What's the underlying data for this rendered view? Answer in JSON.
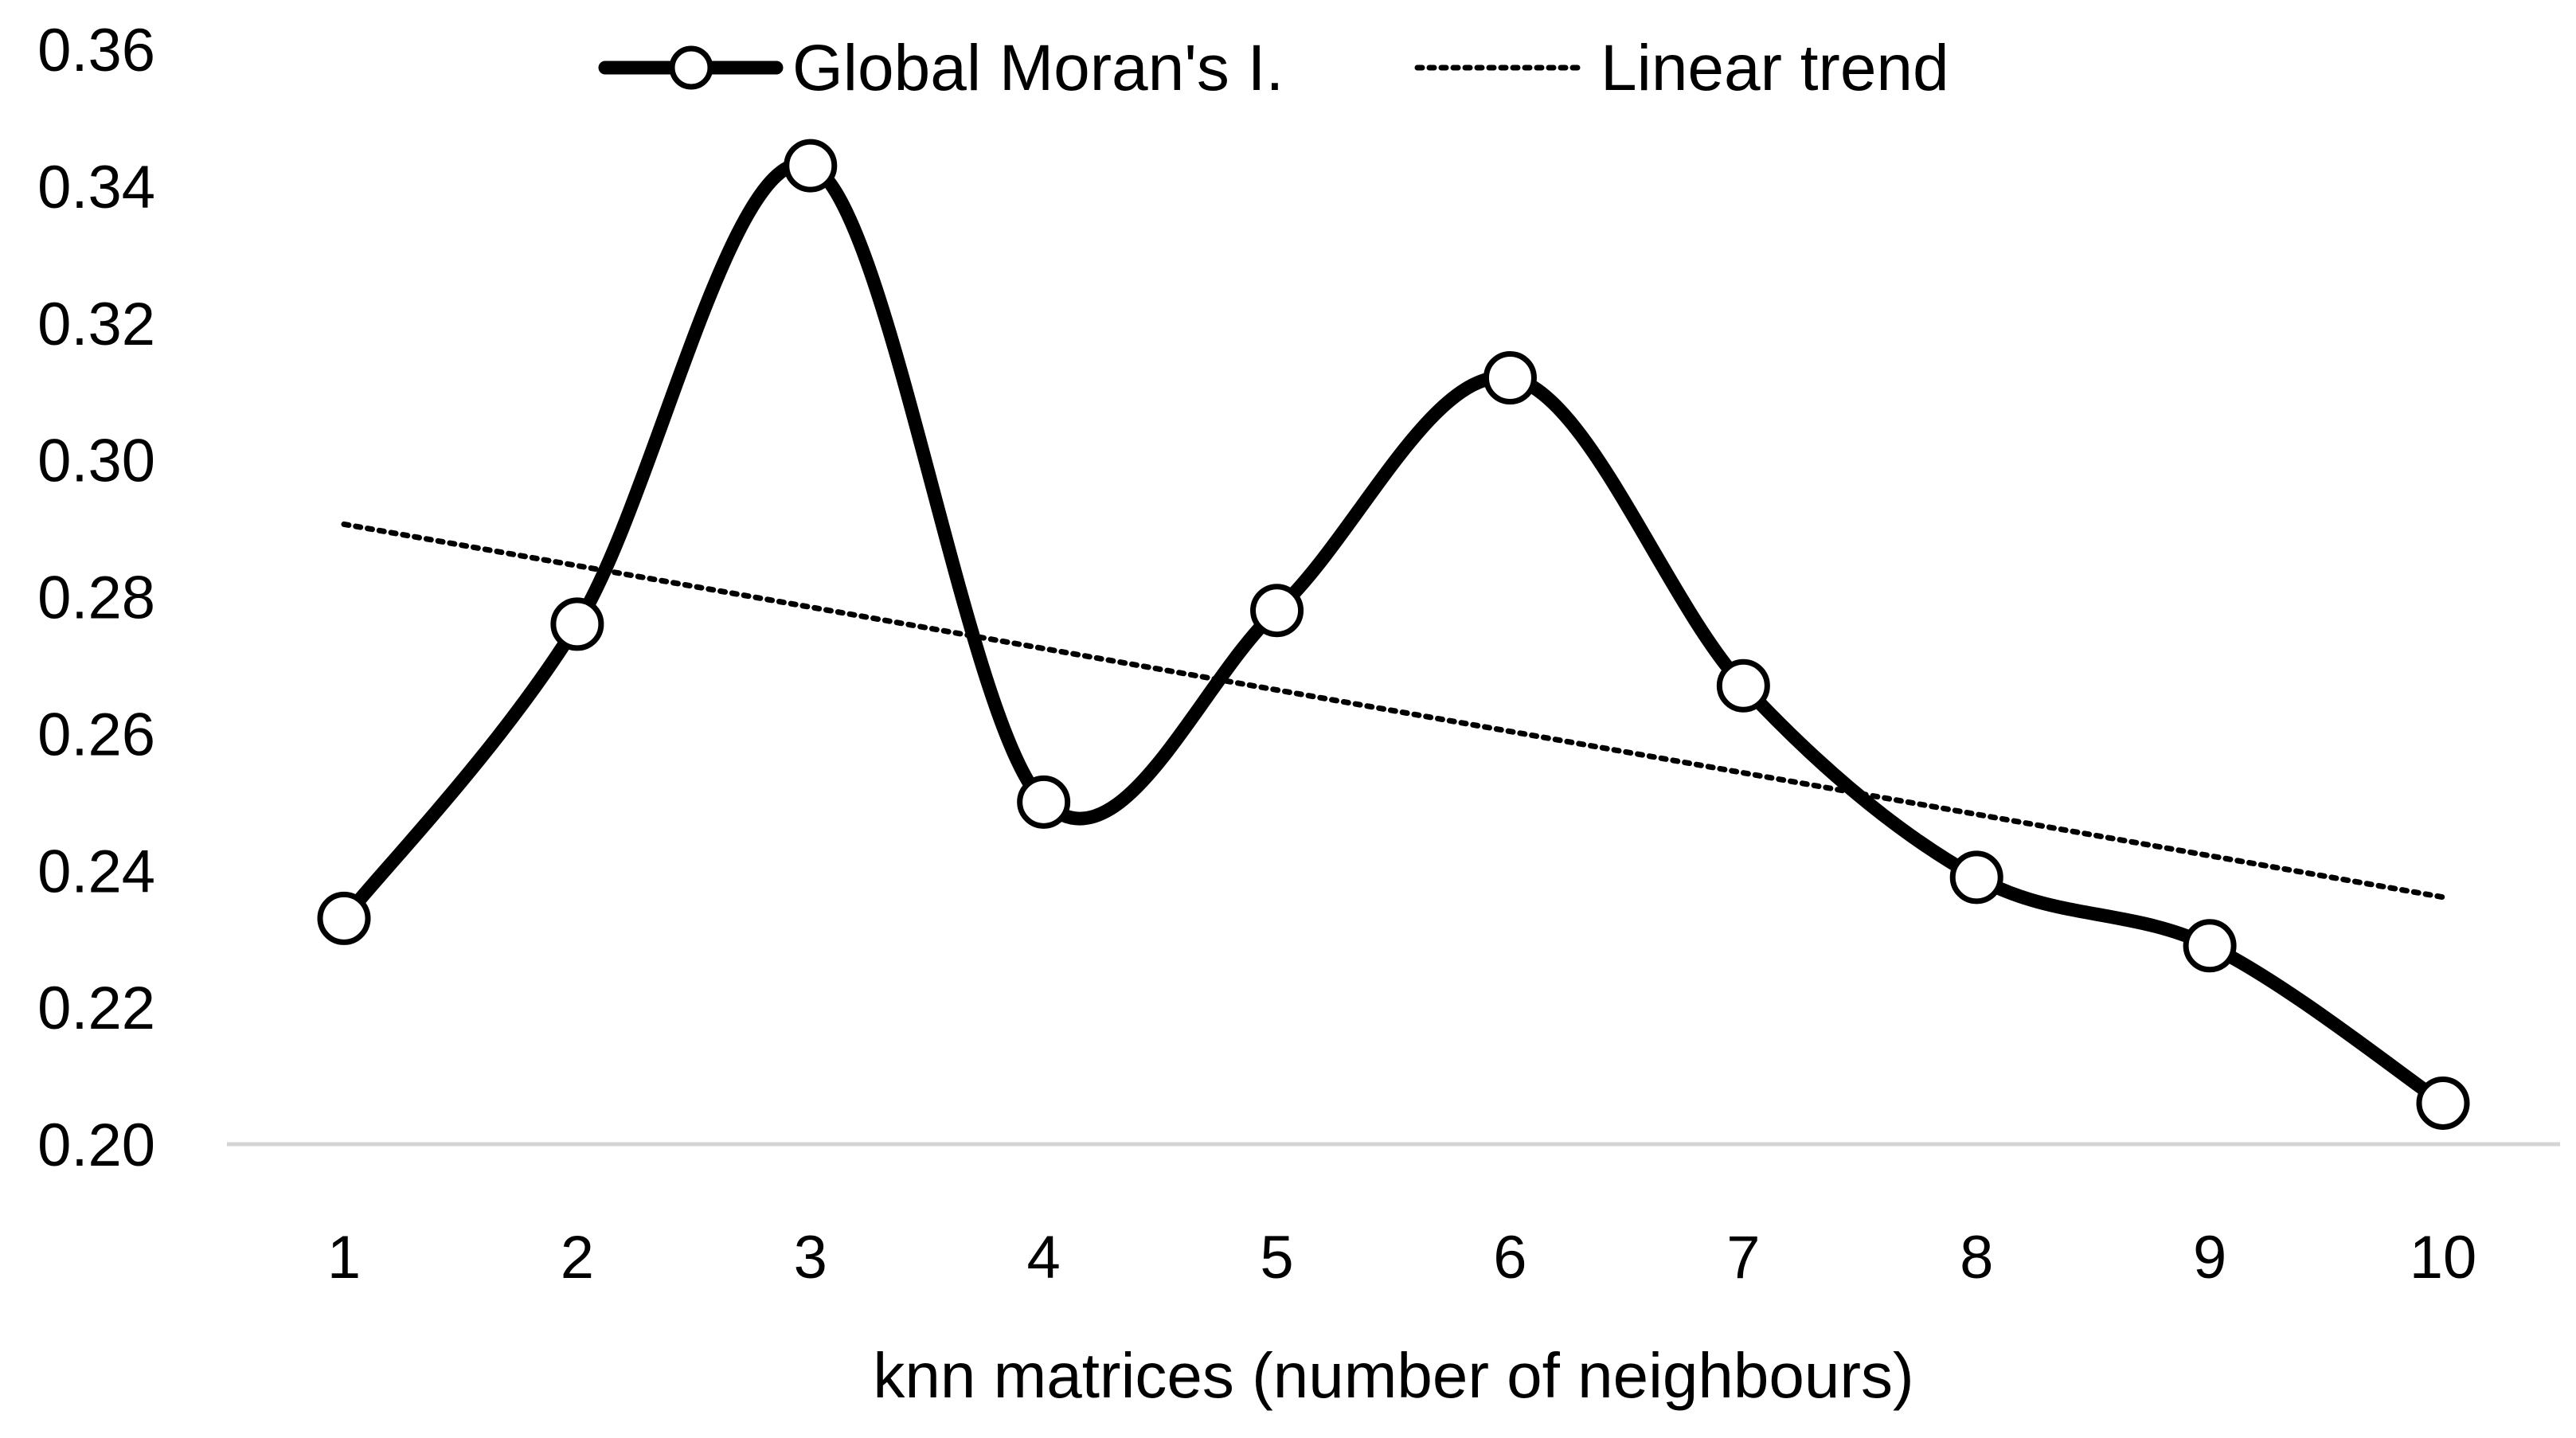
{
  "chart_data": {
    "type": "line",
    "title": "",
    "xlabel": "knn matrices (number of neighbours)",
    "ylabel": "",
    "x": [
      1,
      2,
      3,
      4,
      5,
      6,
      7,
      8,
      9,
      10
    ],
    "x_tick_labels": [
      "1",
      "2",
      "3",
      "4",
      "5",
      "6",
      "7",
      "8",
      "9",
      "10"
    ],
    "y_tick_labels": [
      "0.20",
      "0.22",
      "0.24",
      "0.26",
      "0.28",
      "0.30",
      "0.32",
      "0.34",
      "0.36"
    ],
    "ylim": [
      0.2,
      0.36
    ],
    "grid": false,
    "legend_position": "top",
    "series": [
      {
        "name": "Global Moran's I.",
        "style": "solid-smoothed-with-open-circle-markers",
        "color": "#000000",
        "values": [
          0.233,
          0.276,
          0.343,
          0.25,
          0.278,
          0.312,
          0.267,
          0.239,
          0.229,
          0.206
        ]
      },
      {
        "name": "Linear trend",
        "style": "dotted",
        "color": "#000000",
        "values": [
          0.2906,
          0.2845,
          0.2785,
          0.2724,
          0.2664,
          0.2603,
          0.2542,
          0.2482,
          0.2421,
          0.2361
        ]
      }
    ]
  }
}
